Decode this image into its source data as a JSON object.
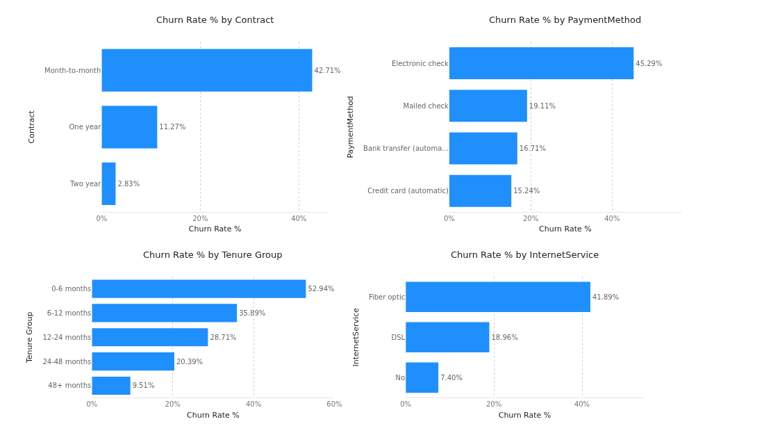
{
  "chart_data": [
    {
      "type": "bar",
      "orientation": "horizontal",
      "title": "Churn Rate % by Contract",
      "xlabel": "Churn Rate %",
      "ylabel": "Contract",
      "categories": [
        "Month-to-month",
        "One year",
        "Two year"
      ],
      "values": [
        42.71,
        11.27,
        2.83
      ],
      "value_labels": [
        "42.71%",
        "11.27%",
        "2.83%"
      ],
      "color": "#1f8ffe",
      "xlim": [
        0,
        46
      ],
      "xticks": [
        {
          "value": 0,
          "label": "0%"
        },
        {
          "value": 20,
          "label": "20%"
        },
        {
          "value": 40,
          "label": "40%"
        }
      ],
      "grid": "x"
    },
    {
      "type": "bar",
      "orientation": "horizontal",
      "title": "Churn Rate % by PaymentMethod",
      "xlabel": "Churn Rate %",
      "ylabel": "PaymentMethod",
      "categories": [
        "Electronic check",
        "Mailed check",
        "Bank transfer (automa...",
        "Credit card (automatic)"
      ],
      "values": [
        45.29,
        19.11,
        16.71,
        15.24
      ],
      "value_labels": [
        "45.29%",
        "19.11%",
        "16.71%",
        "15.24%"
      ],
      "color": "#1f8ffe",
      "xlim": [
        0,
        57
      ],
      "xticks": [
        {
          "value": 0,
          "label": "0%"
        },
        {
          "value": 20,
          "label": "20%"
        },
        {
          "value": 40,
          "label": "40%"
        }
      ],
      "grid": "x"
    },
    {
      "type": "bar",
      "orientation": "horizontal",
      "title": "Churn Rate % by Tenure Group",
      "xlabel": "Churn Rate %",
      "ylabel": "Tenure Group",
      "categories": [
        "0-6 months",
        "6-12 months",
        "12-24 months",
        "24-48 months",
        "48+ months"
      ],
      "values": [
        52.94,
        35.89,
        28.71,
        20.39,
        9.51
      ],
      "value_labels": [
        "52.94%",
        "35.89%",
        "28.71%",
        "20.39%",
        "9.51%"
      ],
      "color": "#1f8ffe",
      "xlim": [
        0,
        60
      ],
      "xticks": [
        {
          "value": 0,
          "label": "0%"
        },
        {
          "value": 20,
          "label": "20%"
        },
        {
          "value": 40,
          "label": "40%"
        },
        {
          "value": 60,
          "label": "60%"
        }
      ],
      "grid": "x"
    },
    {
      "type": "bar",
      "orientation": "horizontal",
      "title": "Churn Rate % by InternetService",
      "xlabel": "Churn Rate %",
      "ylabel": "InternetService",
      "categories": [
        "Fiber optic",
        "DSL",
        "No"
      ],
      "values": [
        41.89,
        18.96,
        7.4
      ],
      "value_labels": [
        "41.89%",
        "18.96%",
        "7.40%"
      ],
      "color": "#1f8ffe",
      "xlim": [
        0,
        54
      ],
      "xticks": [
        {
          "value": 0,
          "label": "0%"
        },
        {
          "value": 20,
          "label": "20%"
        },
        {
          "value": 40,
          "label": "40%"
        }
      ],
      "grid": "x"
    }
  ]
}
